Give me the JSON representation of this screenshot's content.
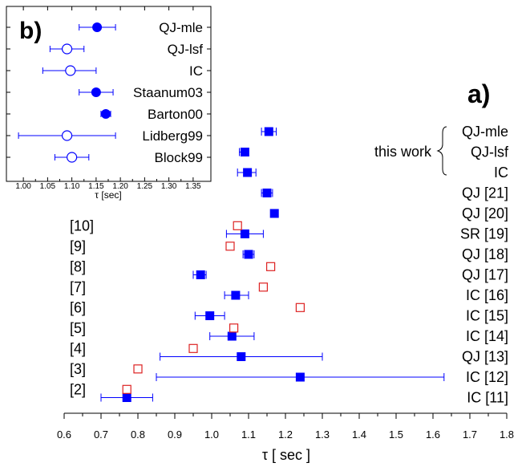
{
  "chart_data": [
    {
      "panel_label": "a)",
      "type": "scatter",
      "xlabel": "τ [ sec ]",
      "xlim": [
        0.6,
        1.8
      ],
      "x_ticks": [
        "0.6",
        "0.7",
        "0.8",
        "0.9",
        "1.0",
        "1.1",
        "1.2",
        "1.3",
        "1.4",
        "1.5",
        "1.6",
        "1.7",
        "1.8"
      ],
      "row_labels_right": [
        "QJ-mle",
        "QJ-lsf",
        "IC",
        "QJ [21]",
        "QJ [20]",
        "SR [19]",
        "QJ [18]",
        "QJ [17]",
        "IC [16]",
        "IC [15]",
        "IC [14]",
        "QJ [13]",
        "IC [12]",
        "IC [11]"
      ],
      "this_work_label": "this work",
      "row_labels_left": [
        "[10]",
        "[9]",
        "[8]",
        "[7]",
        "[6]",
        "[5]",
        "[4]",
        "[3]",
        "[2]"
      ],
      "series": [
        {
          "marker": "filled-square",
          "color": "#0000ff",
          "points": [
            {
              "row": 0,
              "x": 1.155,
              "err": [
                1.135,
                1.175
              ]
            },
            {
              "row": 1,
              "x": 1.09,
              "err": [
                1.075,
                1.1
              ]
            },
            {
              "row": 2,
              "x": 1.097,
              "err": [
                1.07,
                1.12
              ]
            },
            {
              "row": 3,
              "x": 1.15,
              "err": [
                1.135,
                1.165
              ]
            },
            {
              "row": 4,
              "x": 1.17,
              "err": null
            },
            {
              "row": 5,
              "x": 1.09,
              "err": [
                1.04,
                1.14
              ]
            },
            {
              "row": 6,
              "x": 1.1,
              "err": [
                1.085,
                1.115
              ]
            },
            {
              "row": 7,
              "x": 0.97,
              "err": [
                0.95,
                0.985
              ]
            },
            {
              "row": 8,
              "x": 1.065,
              "err": [
                1.035,
                1.1
              ]
            },
            {
              "row": 9,
              "x": 0.995,
              "err": [
                0.955,
                1.035
              ]
            },
            {
              "row": 10,
              "x": 1.055,
              "err": [
                0.995,
                1.115
              ]
            },
            {
              "row": 11,
              "x": 1.08,
              "err": [
                0.86,
                1.3
              ]
            },
            {
              "row": 12,
              "x": 1.24,
              "err": [
                0.85,
                1.63
              ]
            },
            {
              "row": 13,
              "x": 0.77,
              "err": [
                0.7,
                0.84
              ]
            }
          ]
        },
        {
          "marker": "open-square",
          "color": "#dd2222",
          "points": [
            {
              "row": 4.6,
              "x": 1.07
            },
            {
              "row": 5.6,
              "x": 1.05
            },
            {
              "row": 6.6,
              "x": 1.16
            },
            {
              "row": 7.6,
              "x": 1.14
            },
            {
              "row": 8.6,
              "x": 1.24
            },
            {
              "row": 9.6,
              "x": 1.06
            },
            {
              "row": 10.6,
              "x": 0.95
            },
            {
              "row": 11.6,
              "x": 0.8
            },
            {
              "row": 12.6,
              "x": 0.77
            }
          ]
        }
      ]
    },
    {
      "panel_label": "b)",
      "type": "scatter",
      "xlabel": "τ  [sec]",
      "xlim": [
        0.975,
        1.375
      ],
      "x_ticks": [
        "1.00",
        "1.05",
        "1.10",
        "1.15",
        "1.20",
        "1.25",
        "1.30",
        "1.35"
      ],
      "categories": [
        "QJ-mle",
        "QJ-lsf",
        "IC",
        "Staanum03",
        "Barton00",
        "Lidberg99",
        "Block99"
      ],
      "points": [
        {
          "label": "QJ-mle",
          "x": 1.152,
          "err": [
            1.115,
            1.19
          ],
          "filled": true
        },
        {
          "label": "QJ-lsf",
          "x": 1.09,
          "err": [
            1.055,
            1.125
          ],
          "filled": false
        },
        {
          "label": "IC",
          "x": 1.097,
          "err": [
            1.04,
            1.15
          ],
          "filled": false
        },
        {
          "label": "Staanum03",
          "x": 1.15,
          "err": [
            1.115,
            1.185
          ],
          "filled": true
        },
        {
          "label": "Barton00",
          "x": 1.17,
          "err": [
            1.16,
            1.18
          ],
          "filled": true
        },
        {
          "label": "Lidberg99",
          "x": 1.09,
          "err": [
            0.99,
            1.19
          ],
          "filled": false
        },
        {
          "label": "Block99",
          "x": 1.1,
          "err": [
            1.065,
            1.135
          ],
          "filled": false
        }
      ]
    }
  ]
}
